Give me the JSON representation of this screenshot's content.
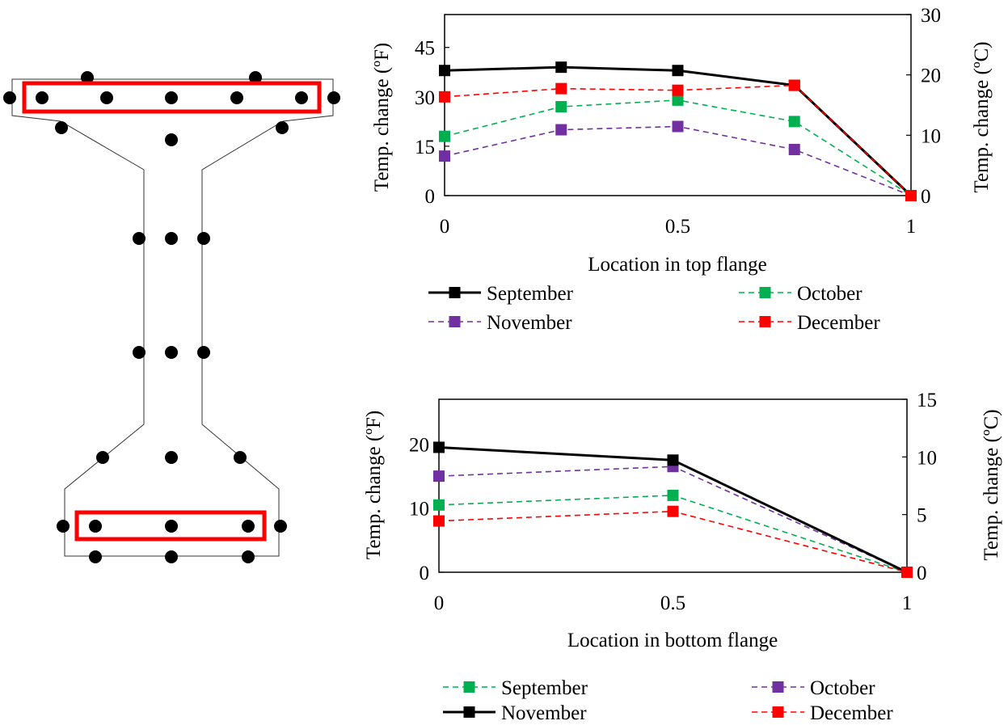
{
  "colors": {
    "black": "#000000",
    "green": "#00b050",
    "purple": "#7030a0",
    "red": "#ff0000",
    "highlight": "#ff0000"
  },
  "chart_data": [
    {
      "type": "line",
      "xlabel": "Location in top flange",
      "ylabel": "Temp. change (ºF)",
      "ylabel_right": "Temp. change (ºC)",
      "xlim": [
        0,
        1
      ],
      "ylim": [
        0,
        55
      ],
      "ylim_right": [
        0,
        30
      ],
      "x_ticks": [
        "0",
        "0.5",
        "1"
      ],
      "y_ticks": [
        "0",
        "15",
        "30",
        "45"
      ],
      "y_ticks_right": [
        "0",
        "10",
        "20",
        "30"
      ],
      "grid": false,
      "legend_position": "bottom",
      "x": [
        0,
        0.25,
        0.5,
        0.75,
        1
      ],
      "series": [
        {
          "name": "September",
          "values": [
            38,
            39,
            38,
            33.5,
            0
          ],
          "color": "#000000",
          "style": "solid"
        },
        {
          "name": "October",
          "values": [
            18,
            27,
            29,
            22.5,
            0
          ],
          "color": "#00b050",
          "style": "dashed"
        },
        {
          "name": "November",
          "values": [
            12,
            20,
            21,
            14,
            0
          ],
          "color": "#7030a0",
          "style": "dashed"
        },
        {
          "name": "December",
          "values": [
            30,
            32.5,
            32,
            33.5,
            0
          ],
          "color": "#ff0000",
          "style": "dashed"
        }
      ]
    },
    {
      "type": "line",
      "xlabel": "Location in bottom flange",
      "ylabel": "Temp. change (ºF)",
      "ylabel_right": "Temp. change (ºC)",
      "xlim": [
        0,
        1
      ],
      "ylim": [
        0,
        27
      ],
      "ylim_right": [
        0,
        15
      ],
      "x_ticks": [
        "0",
        "0.5",
        "1"
      ],
      "y_ticks": [
        "0",
        "10",
        "20"
      ],
      "y_ticks_right": [
        "0",
        "5",
        "10",
        "15"
      ],
      "grid": false,
      "legend_position": "bottom",
      "x": [
        0,
        0.5,
        1
      ],
      "series": [
        {
          "name": "September",
          "values": [
            10.5,
            12,
            0
          ],
          "color": "#00b050",
          "style": "dashed"
        },
        {
          "name": "October",
          "values": [
            15,
            16.5,
            0
          ],
          "color": "#7030a0",
          "style": "dashed"
        },
        {
          "name": "November",
          "values": [
            19.5,
            17.5,
            0
          ],
          "color": "#000000",
          "style": "solid"
        },
        {
          "name": "December",
          "values": [
            8,
            9.5,
            0
          ],
          "color": "#ff0000",
          "style": "dashed"
        }
      ]
    }
  ]
}
